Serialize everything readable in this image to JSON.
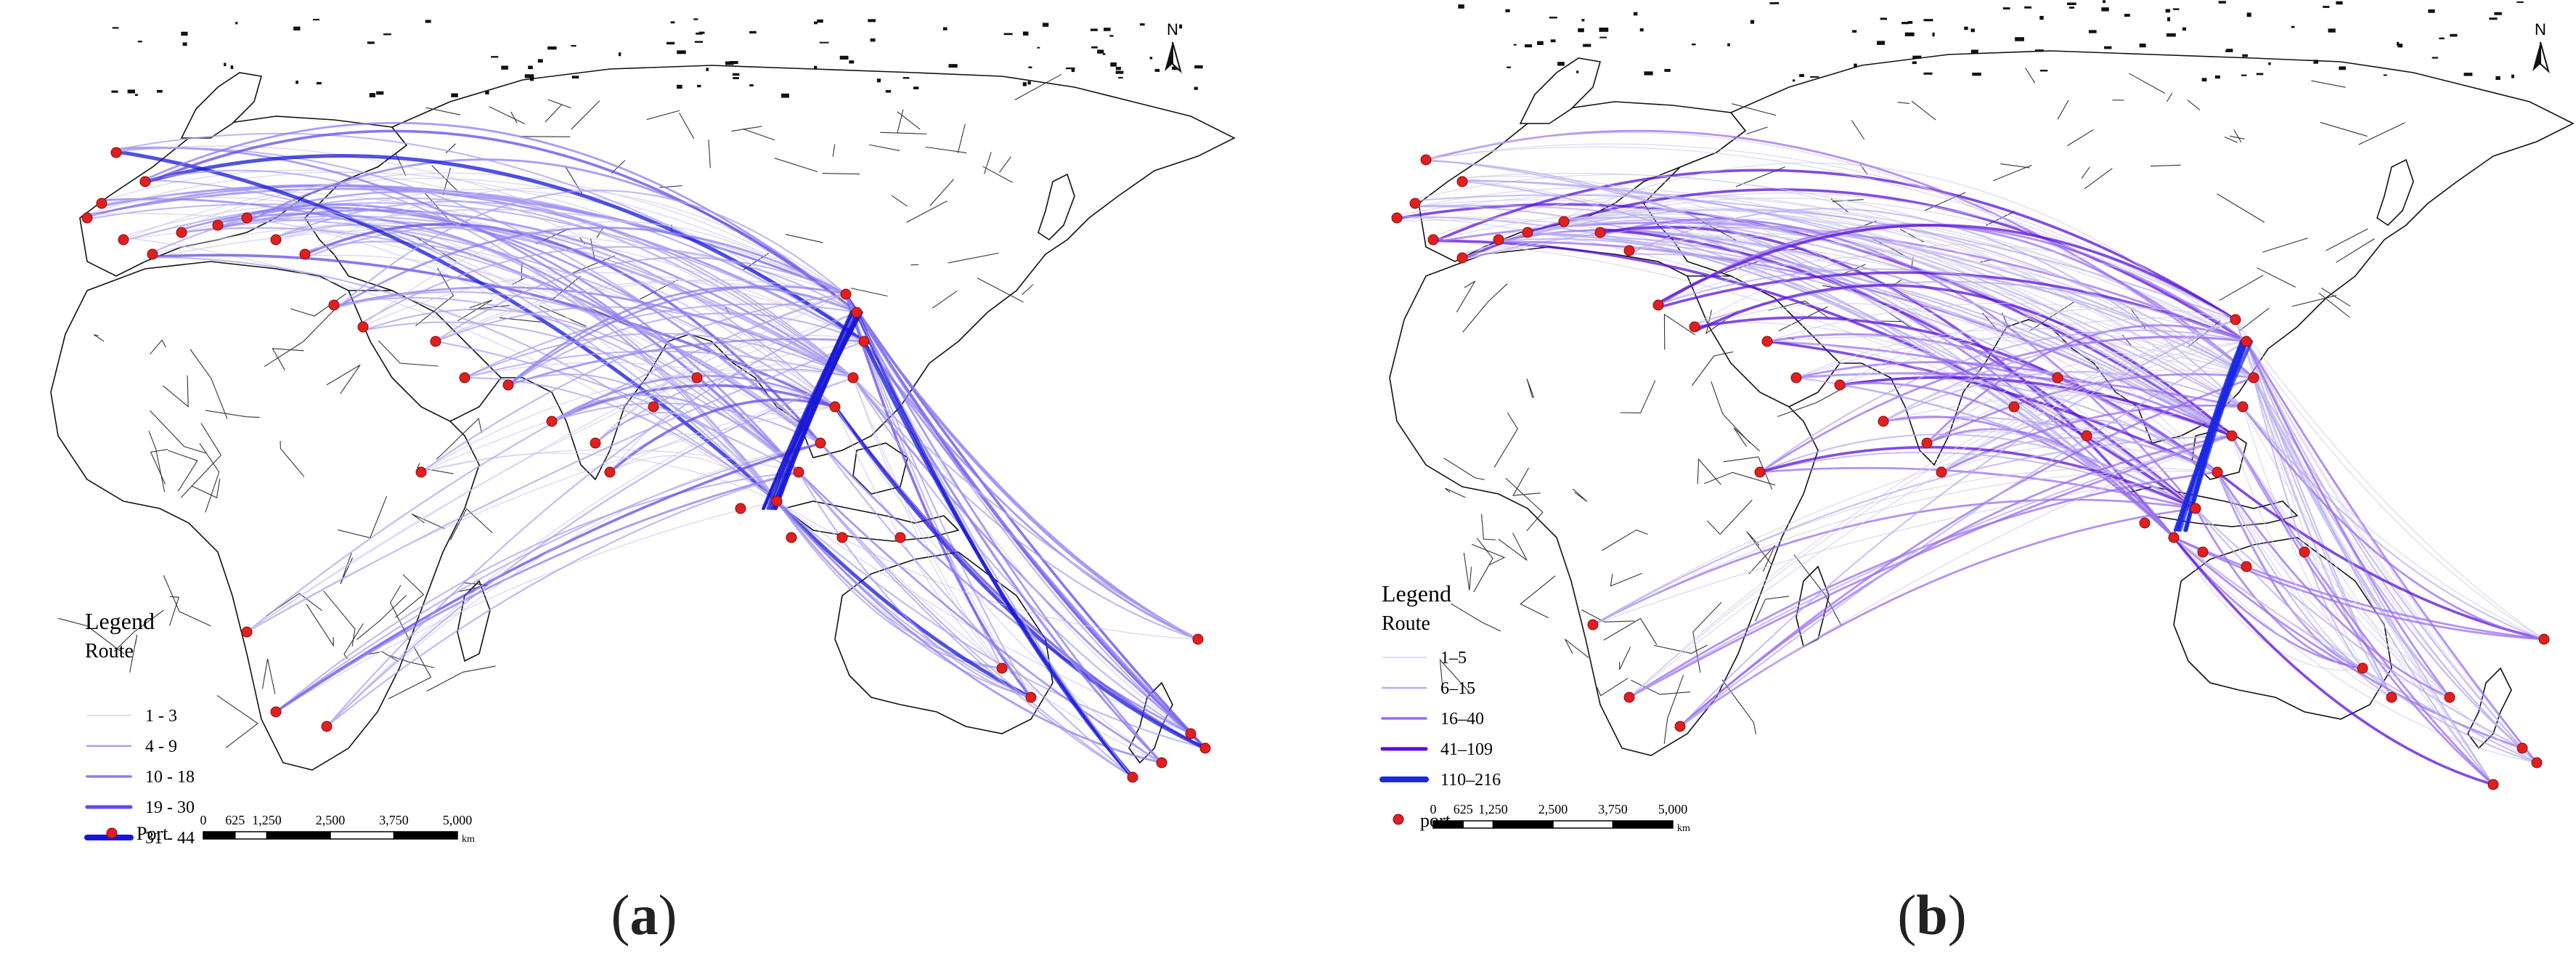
{
  "maps": [
    {
      "id": "a",
      "caption_letter": "a",
      "north_label": "N",
      "legend": {
        "title": "Legend",
        "subtitle": "Route",
        "classes": [
          {
            "label": "1 - 3",
            "color": "#c9c5ec"
          },
          {
            "label": "4 - 9",
            "color": "#a79ef0"
          },
          {
            "label": "10 - 18",
            "color": "#8b7cf0"
          },
          {
            "label": "19 - 30",
            "color": "#6648e6"
          },
          {
            "label": "31 - 44",
            "color": "#1717d6"
          }
        ],
        "port_label": "Port"
      },
      "scale_bar": {
        "ticks": [
          "0",
          "625",
          "1,250",
          "2,500",
          "3,750",
          "5,000"
        ],
        "unit": "km"
      }
    },
    {
      "id": "b",
      "caption_letter": "b",
      "north_label": "N",
      "legend": {
        "title": "Legend",
        "subtitle": "Route",
        "classes": [
          {
            "label": "1–5",
            "color": "#cfcbee"
          },
          {
            "label": "6–15",
            "color": "#b4aaf2"
          },
          {
            "label": "16–40",
            "color": "#9a6cf0"
          },
          {
            "label": "41–109",
            "color": "#5a10d8"
          },
          {
            "label": "110–216",
            "color": "#1a28e0"
          }
        ],
        "port_label": "port"
      },
      "scale_bar": {
        "ticks": [
          "0",
          "625",
          "1,250",
          "2,500",
          "3,750",
          "5,000"
        ],
        "unit": "km"
      }
    }
  ],
  "colors": {
    "port": "#e02020",
    "port_stroke": "#8a0a0a",
    "outline": "#111111"
  }
}
